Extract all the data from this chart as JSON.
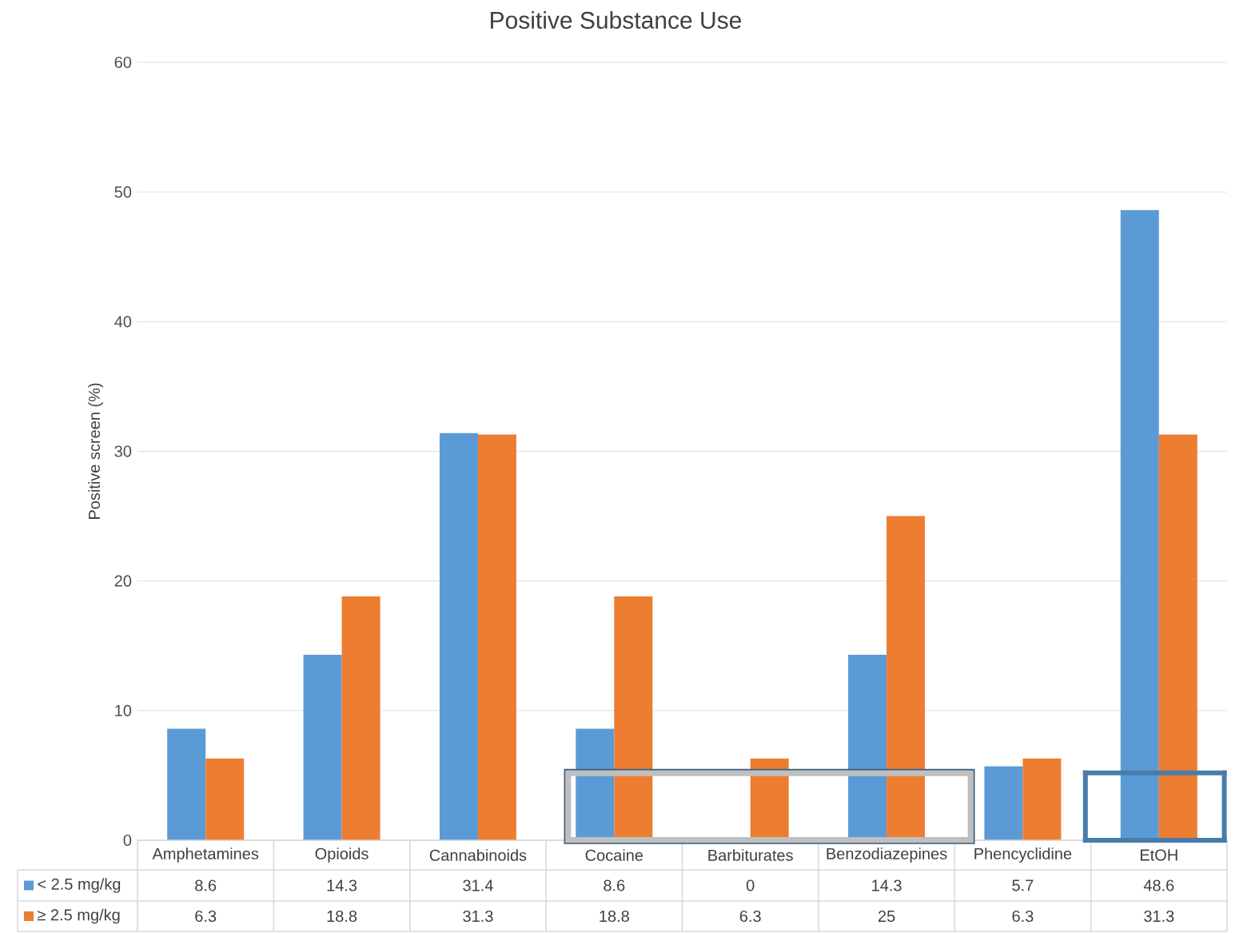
{
  "chart_data": {
    "type": "bar",
    "title": "Positive Substance Use",
    "ylabel": "Positive screen (%)",
    "categories": [
      "Amphetamines",
      "Opioids",
      "Cannabinoids",
      "Cocaine",
      "Barbiturates",
      "Benzodiazepines",
      "Phencyclidine",
      "EtOH"
    ],
    "series": [
      {
        "name": "< 2.5 mg/kg",
        "color": "#5b9bd5",
        "values": [
          8.6,
          14.3,
          31.4,
          8.6,
          0,
          14.3,
          5.7,
          48.6
        ]
      },
      {
        "name": "≥ 2.5 mg/kg",
        "color": "#ed7d31",
        "values": [
          6.3,
          18.8,
          31.3,
          18.8,
          6.3,
          25,
          6.3,
          31.3
        ]
      }
    ],
    "ylim": [
      0,
      60
    ],
    "yticks": [
      0,
      10,
      20,
      30,
      40,
      50,
      60
    ],
    "grid": "y",
    "legend": "bottom",
    "data_labels": true
  }
}
